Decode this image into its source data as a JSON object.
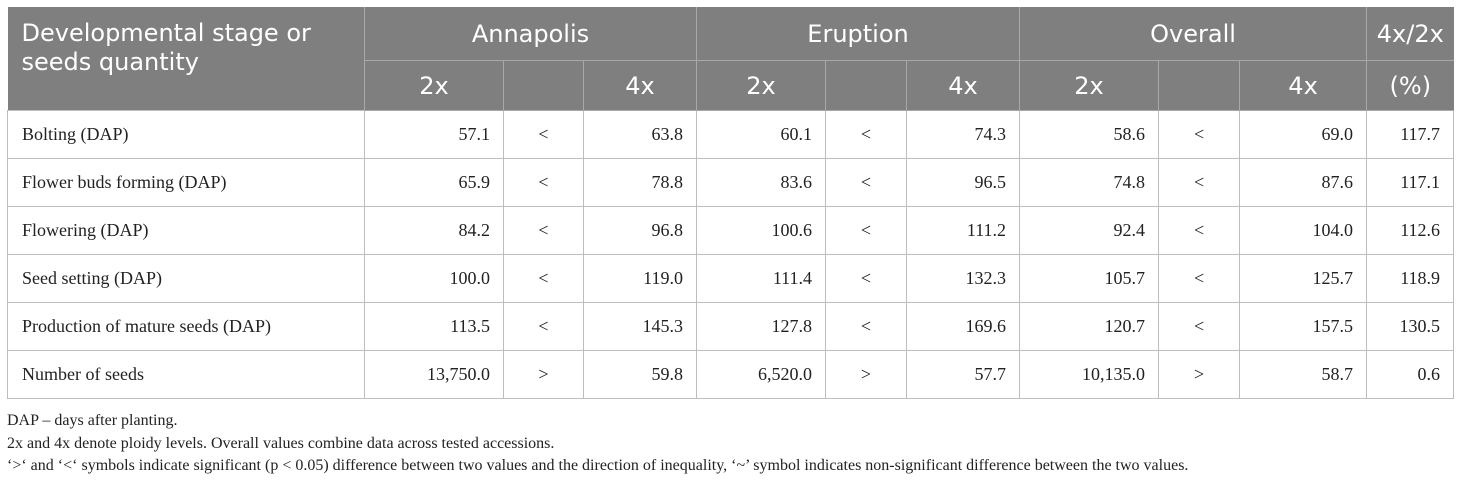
{
  "header": {
    "stage_label": "Developmental stage or seeds quantity",
    "groups": [
      "Annapolis",
      "Eruption",
      "Overall",
      "4x/2x"
    ],
    "sub": [
      "2x",
      "",
      "4x",
      "2x",
      "",
      "4x",
      "2x",
      "",
      "4x",
      "(%)"
    ]
  },
  "rows": [
    {
      "label": "Bolting (DAP)",
      "cells": [
        "57.1",
        "<",
        "63.8",
        "60.1",
        "<",
        "74.3",
        "58.6",
        "<",
        "69.0",
        "117.7"
      ]
    },
    {
      "label": "Flower buds forming (DAP)",
      "cells": [
        "65.9",
        "<",
        "78.8",
        "83.6",
        "<",
        "96.5",
        "74.8",
        "<",
        "87.6",
        "117.1"
      ]
    },
    {
      "label": "Flowering (DAP)",
      "cells": [
        "84.2",
        "<",
        "96.8",
        "100.6",
        "<",
        "111.2",
        "92.4",
        "<",
        "104.0",
        "112.6"
      ]
    },
    {
      "label": "Seed setting (DAP)",
      "cells": [
        "100.0",
        "<",
        "119.0",
        "111.4",
        "<",
        "132.3",
        "105.7",
        "<",
        "125.7",
        "118.9"
      ]
    },
    {
      "label": "Production of mature seeds (DAP)",
      "cells": [
        "113.5",
        "<",
        "145.3",
        "127.8",
        "<",
        "169.6",
        "120.7",
        "<",
        "157.5",
        "130.5"
      ]
    },
    {
      "label": "Number of seeds",
      "cells": [
        "13,750.0",
        ">",
        "59.8",
        "6,520.0",
        ">",
        "57.7",
        "10,135.0",
        ">",
        "58.7",
        "0.6"
      ]
    }
  ],
  "notes": [
    "DAP – days after planting.",
    "2x and 4x denote ploidy levels. Overall values combine data across tested accessions.",
    "‘>‘ and ‘<‘ symbols indicate significant (p < 0.05) difference between two values and the direction of inequality, ‘~’ symbol indicates non-significant difference between the two values."
  ]
}
